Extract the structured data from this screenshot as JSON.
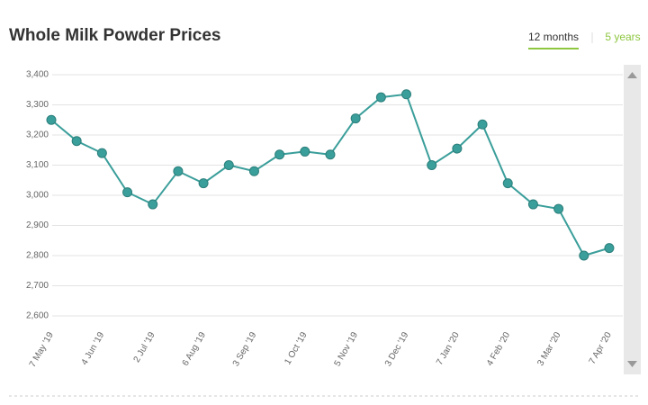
{
  "chart_data": {
    "type": "line",
    "title": "Whole Milk Powder Prices",
    "tabs": [
      "12 months",
      "5 years"
    ],
    "categories": [
      "7 May '19",
      null,
      "4 Jun '19",
      null,
      "2 Jul '19",
      null,
      "6 Aug '19",
      null,
      "3 Sep '19",
      null,
      "1 Oct '19",
      null,
      "5 Nov '19",
      null,
      "3 Dec '19",
      null,
      "7 Jan '20",
      null,
      "4 Feb '20",
      null,
      "3 Mar '20",
      null,
      "7 Apr '20"
    ],
    "values": [
      3250,
      3180,
      3140,
      3010,
      2970,
      3080,
      3040,
      3100,
      3080,
      3135,
      3145,
      3135,
      3255,
      3325,
      3335,
      3100,
      3155,
      3235,
      3040,
      2970,
      2955,
      2800,
      2825
    ],
    "color": "#3a9e9a",
    "ylim": [
      2600,
      3400
    ],
    "yticks": [
      {
        "value": 2600,
        "label": "2,600"
      },
      {
        "value": 2700,
        "label": "2,700"
      },
      {
        "value": 2800,
        "label": "2,800"
      },
      {
        "value": 2900,
        "label": "2,900"
      },
      {
        "value": 3000,
        "label": "3,000"
      },
      {
        "value": 3100,
        "label": "3,100"
      },
      {
        "value": 3200,
        "label": "3,200"
      },
      {
        "value": 3300,
        "label": "3,300"
      },
      {
        "value": 3400,
        "label": "3,400"
      }
    ],
    "grid": true
  }
}
